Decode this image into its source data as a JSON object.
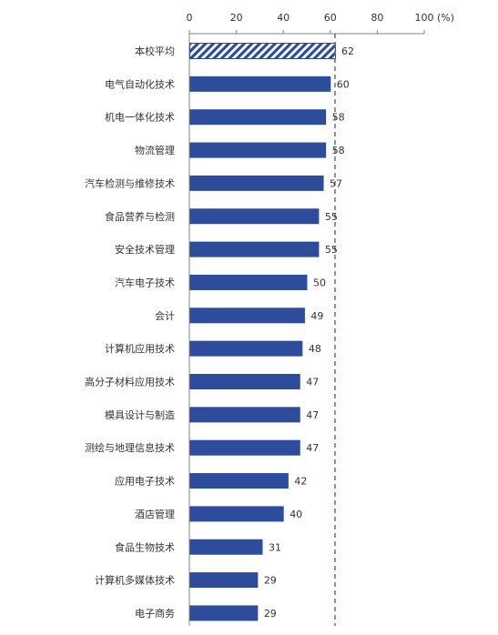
{
  "chart_data": {
    "type": "bar",
    "orientation": "horizontal",
    "categories": [
      "本校平均",
      "电气自动化技术",
      "机电一体化技术",
      "物流管理",
      "汽车检测与维修技术",
      "食品营养与检测",
      "安全技术管理",
      "汽车电子技术",
      "会计",
      "计算机应用技术",
      "高分子材料应用技术",
      "模具设计与制造",
      "测绘与地理信息技术",
      "应用电子技术",
      "酒店管理",
      "食品生物技术",
      "计算机多媒体技术",
      "电子商务"
    ],
    "values": [
      62,
      60,
      58,
      58,
      57,
      55,
      55,
      50,
      49,
      48,
      47,
      47,
      47,
      42,
      40,
      31,
      29,
      29
    ],
    "highlight_index": 0,
    "reference_line": 62,
    "xlim": [
      0,
      100
    ],
    "x_ticks": [
      "0",
      "20",
      "40",
      "60",
      "80",
      "100"
    ],
    "x_unit": "(%)",
    "axis_position": "top",
    "grid": false,
    "colors": {
      "bar": "#2e4c9c",
      "highlight_hatch": "#2e4c9c",
      "reference_line": "#5a6ea8",
      "axis": "#808080"
    }
  }
}
